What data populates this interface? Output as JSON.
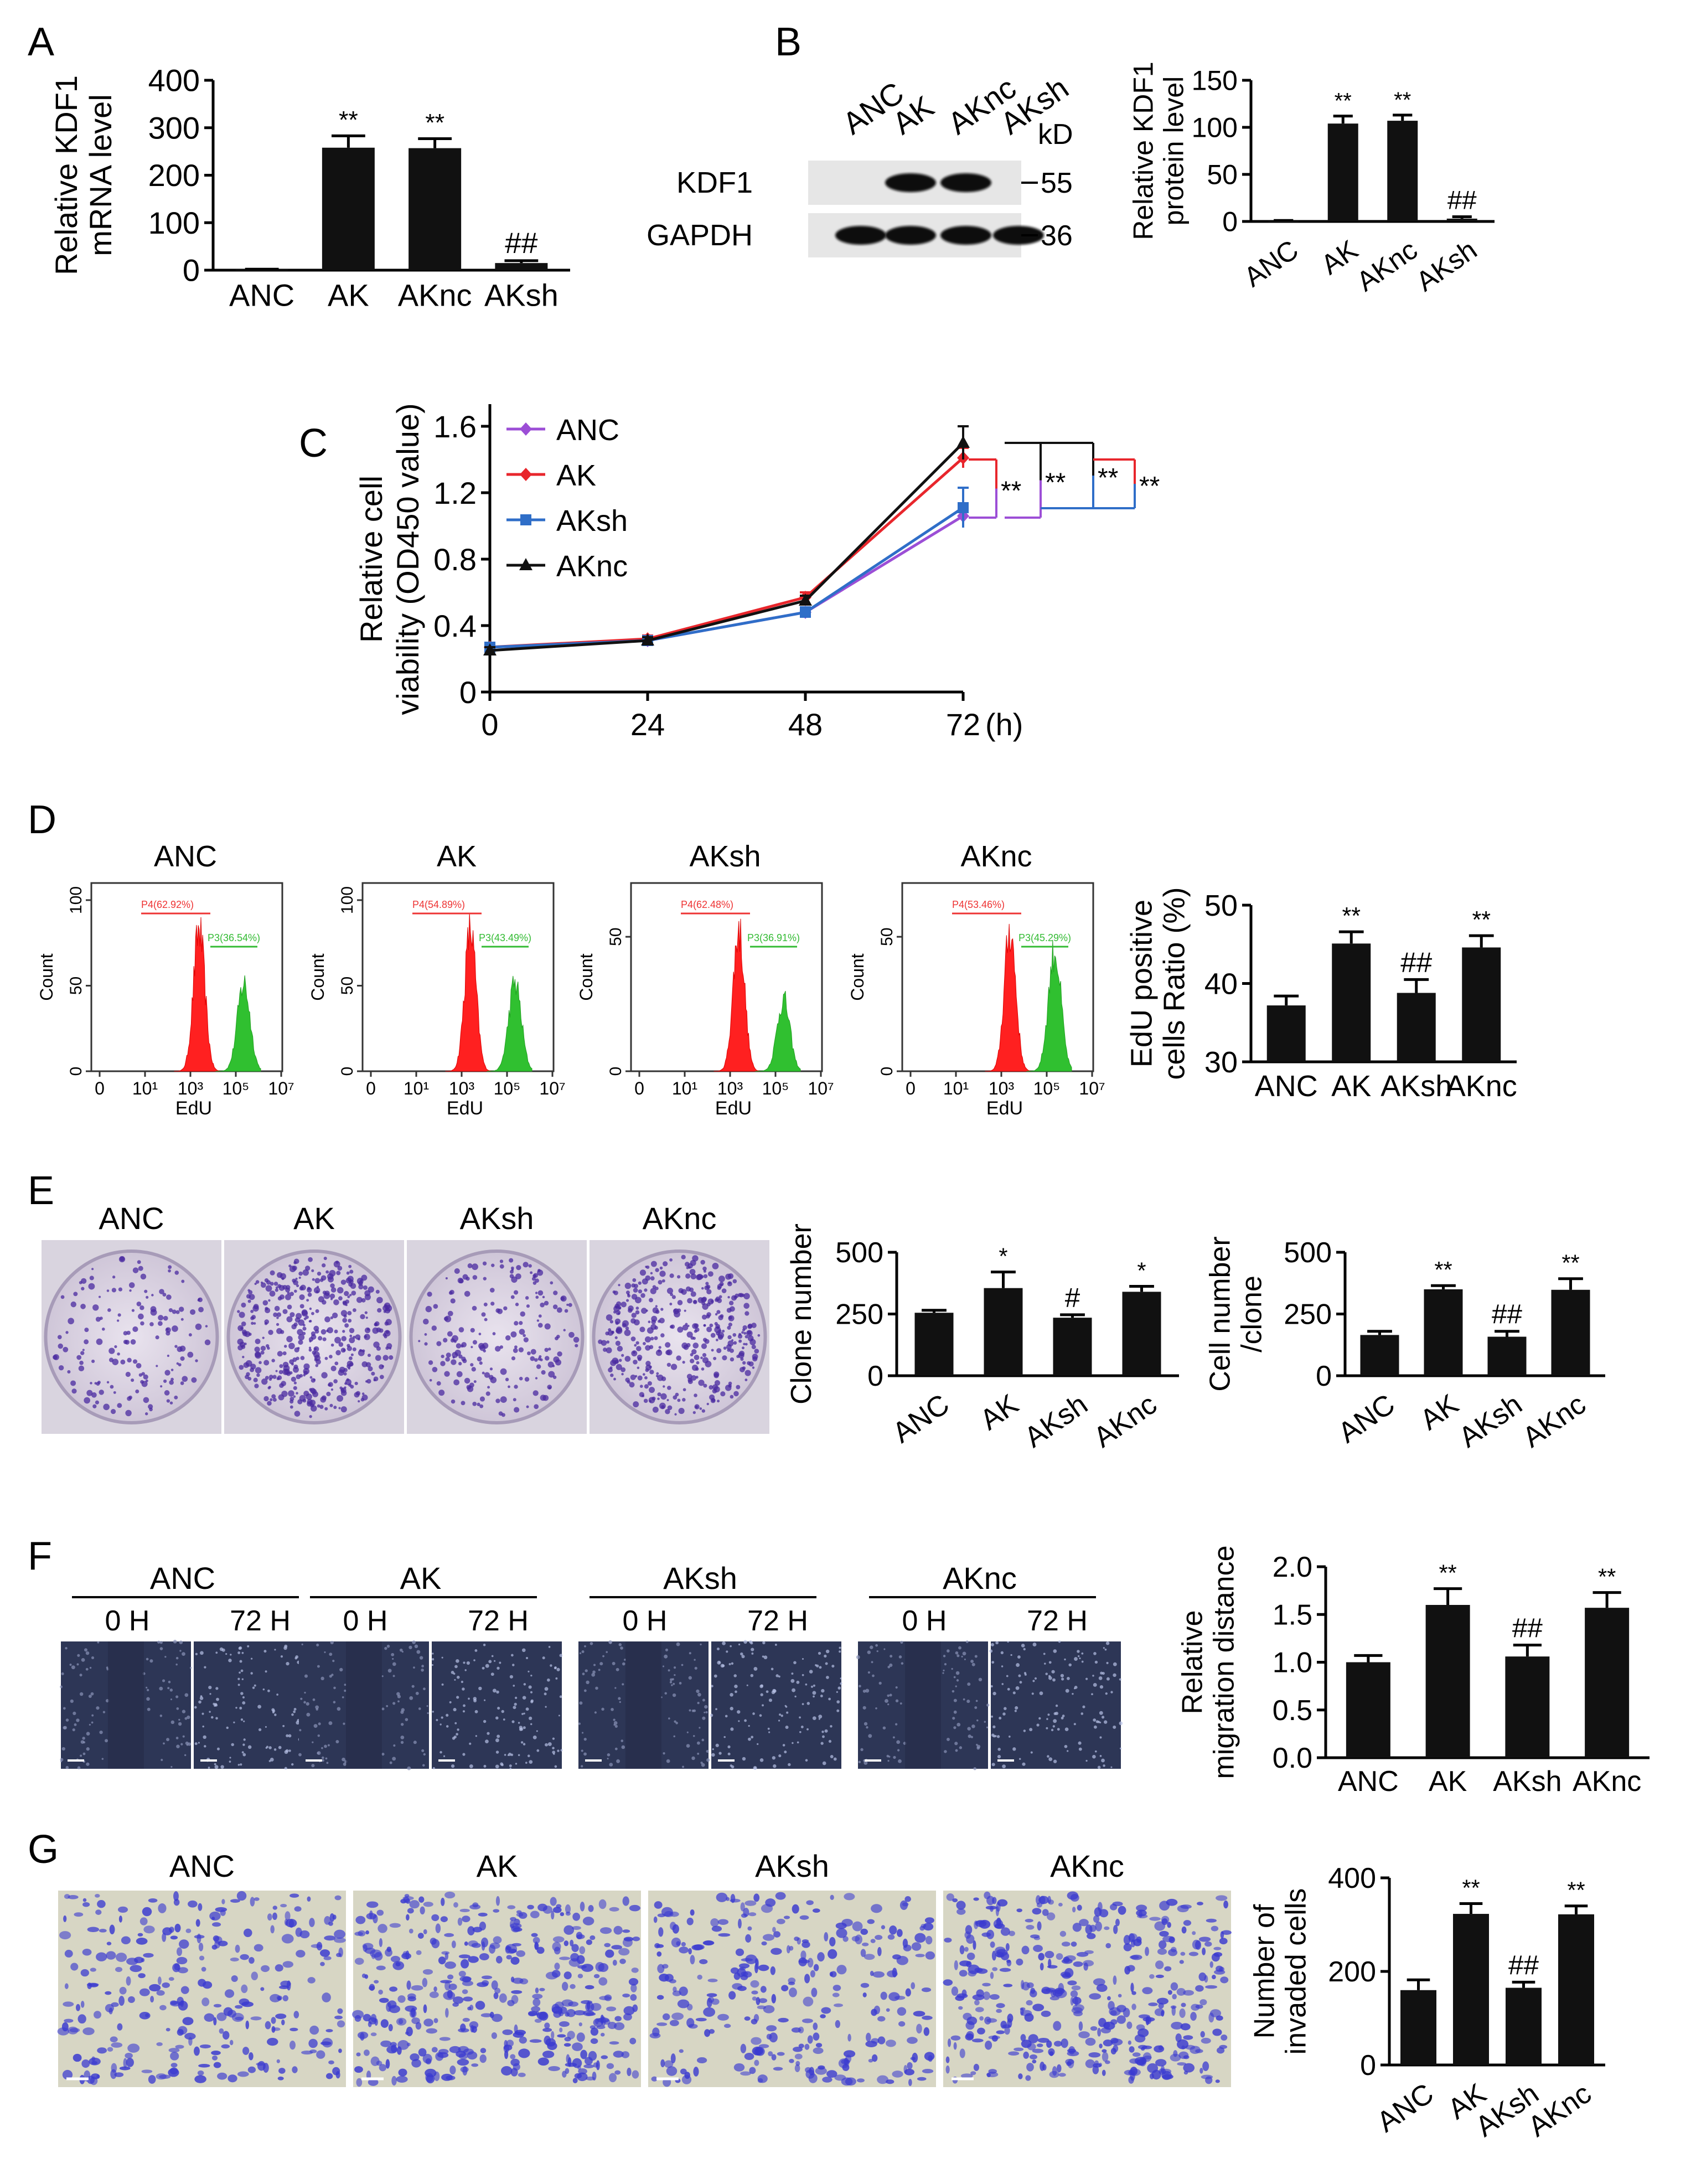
{
  "panels": {
    "A": {
      "label": "A"
    },
    "B": {
      "label": "B"
    },
    "C": {
      "label": "C"
    },
    "D": {
      "label": "D"
    },
    "E": {
      "label": "E"
    },
    "F": {
      "label": "F"
    },
    "G": {
      "label": "G"
    }
  },
  "blot": {
    "lanes": [
      "ANC",
      "AK",
      "AKnc",
      "AKsh"
    ],
    "kd_label": "kD",
    "rows": [
      {
        "name": "KDF1",
        "marker": "55",
        "intensity": [
          0.02,
          1,
          1,
          0.03
        ]
      },
      {
        "name": "GAPDH",
        "marker": "36",
        "intensity": [
          1,
          1,
          1,
          1
        ]
      }
    ]
  },
  "flow": {
    "panels": [
      {
        "title": "ANC",
        "gate1": "P4(62.92%)",
        "gate2": "P3(36.54%)",
        "yticks": [
          "0",
          "50",
          "100"
        ]
      },
      {
        "title": "AK",
        "gate1": "P4(54.89%)",
        "gate2": "P3(43.49%)",
        "yticks": [
          "0",
          "50",
          "100"
        ]
      },
      {
        "title": "AKsh",
        "gate1": "P4(62.48%)",
        "gate2": "P3(36.91%)",
        "yticks": [
          "0",
          "50"
        ]
      },
      {
        "title": "AKnc",
        "gate1": "P4(53.46%)",
        "gate2": "P3(45.29%)",
        "yticks": [
          "0",
          "50"
        ]
      }
    ],
    "xlabel": "EdU",
    "ylabel": "Count",
    "xticks": [
      "0",
      "10¹",
      "10³",
      "10⁵",
      "10⁷"
    ]
  },
  "clone_images": {
    "labels": [
      "ANC",
      "AK",
      "AKsh",
      "AKnc"
    ]
  },
  "wound_images": {
    "groups": [
      "ANC",
      "AK",
      "AKsh",
      "AKnc"
    ],
    "time_labels": [
      "0 H",
      "72 H"
    ]
  },
  "invasion_images": {
    "labels": [
      "ANC",
      "AK",
      "AKsh",
      "AKnc"
    ]
  },
  "chart_data": [
    {
      "id": "A",
      "type": "bar",
      "categories": [
        "ANC",
        "AK",
        "AKnc",
        "AKsh"
      ],
      "values": [
        1,
        258,
        257,
        15
      ],
      "errors": [
        1,
        25,
        20,
        5
      ],
      "annotations": [
        "",
        "**",
        "**",
        "##"
      ],
      "ylabel_lines": [
        "Relative KDF1",
        "mRNA level"
      ],
      "ylim": [
        0,
        400
      ],
      "yticks": [
        0,
        100,
        200,
        300,
        400
      ]
    },
    {
      "id": "B",
      "type": "bar",
      "categories": [
        "ANC",
        "AK",
        "AKnc",
        "AKsh"
      ],
      "values": [
        0.5,
        104,
        107,
        3
      ],
      "errors": [
        0.5,
        8,
        6,
        2
      ],
      "annotations": [
        "",
        "**",
        "**",
        "##"
      ],
      "ylabel_lines": [
        "Relative KDF1",
        "protein level"
      ],
      "ylim": [
        0,
        150
      ],
      "yticks": [
        0,
        50,
        100,
        150
      ]
    },
    {
      "id": "C",
      "type": "line",
      "x": [
        0,
        24,
        48,
        72
      ],
      "xticks": [
        0,
        24,
        48,
        72
      ],
      "xunit": "(h)",
      "ylabel_lines": [
        "Relative cell",
        "viability (OD450 value)"
      ],
      "ylim": [
        0,
        1.6
      ],
      "yticks": [
        0,
        0.4,
        0.8,
        1.2,
        1.6
      ],
      "series": [
        {
          "name": "ANC",
          "color": "#9c4ed6",
          "marker": "diamond",
          "values": [
            0.27,
            0.31,
            0.48,
            1.06
          ],
          "errors": [
            0.02,
            0.02,
            0.03,
            0.06
          ]
        },
        {
          "name": "AK",
          "color": "#e8262c",
          "marker": "diamond",
          "values": [
            0.27,
            0.32,
            0.57,
            1.41
          ],
          "errors": [
            0.02,
            0.02,
            0.03,
            0.06
          ]
        },
        {
          "name": "AKsh",
          "color": "#2f6ec8",
          "marker": "square",
          "values": [
            0.27,
            0.31,
            0.48,
            1.11
          ],
          "errors": [
            0.02,
            0.02,
            0.03,
            0.12
          ]
        },
        {
          "name": "AKnc",
          "color": "#111111",
          "marker": "triangle",
          "values": [
            0.25,
            0.31,
            0.55,
            1.5
          ],
          "errors": [
            0.02,
            0.02,
            0.03,
            0.1
          ]
        }
      ],
      "significance": [
        "**",
        "**",
        "**",
        "**"
      ]
    },
    {
      "id": "D",
      "type": "bar",
      "categories": [
        "ANC",
        "AK",
        "AKsh",
        "AKnc"
      ],
      "values": [
        37.2,
        45.1,
        38.8,
        44.6
      ],
      "errors": [
        1.2,
        1.5,
        1.7,
        1.5
      ],
      "annotations": [
        "",
        "**",
        "##",
        "**"
      ],
      "ylabel_lines": [
        "EdU positive",
        "cells Ratio (%)"
      ],
      "ylim": [
        30,
        50
      ],
      "yticks": [
        30,
        40,
        50
      ]
    },
    {
      "id": "E1",
      "type": "bar",
      "categories": [
        "ANC",
        "AK",
        "AKsh",
        "AKnc"
      ],
      "values": [
        255,
        355,
        235,
        340
      ],
      "errors": [
        10,
        65,
        12,
        22
      ],
      "annotations": [
        "",
        "*",
        "#",
        "*"
      ],
      "ylabel_lines": [
        "Clone number"
      ],
      "ylim": [
        0,
        500
      ],
      "yticks": [
        0,
        250,
        500
      ]
    },
    {
      "id": "E2",
      "type": "bar",
      "categories": [
        "ANC",
        "AK",
        "AKsh",
        "AKnc"
      ],
      "values": [
        165,
        350,
        158,
        348
      ],
      "errors": [
        15,
        15,
        22,
        45
      ],
      "annotations": [
        "",
        "**",
        "##",
        "**"
      ],
      "ylabel_lines": [
        "Cell number",
        "/clone"
      ],
      "ylim": [
        0,
        500
      ],
      "yticks": [
        0,
        250,
        500
      ]
    },
    {
      "id": "F",
      "type": "bar",
      "categories": [
        "ANC",
        "AK",
        "AKsh",
        "AKnc"
      ],
      "values": [
        1.0,
        1.6,
        1.06,
        1.57
      ],
      "errors": [
        0.07,
        0.17,
        0.12,
        0.16
      ],
      "annotations": [
        "",
        "**",
        "##",
        "**"
      ],
      "ylabel_lines": [
        "Relative",
        "migration distance"
      ],
      "ylim": [
        0,
        2.0
      ],
      "yticks": [
        "0.0",
        "0.5",
        "1.0",
        "1.5",
        "2.0"
      ]
    },
    {
      "id": "G",
      "type": "bar",
      "categories": [
        "ANC",
        "AK",
        "AKsh",
        "AKnc"
      ],
      "values": [
        160,
        323,
        165,
        322
      ],
      "errors": [
        22,
        22,
        12,
        18
      ],
      "annotations": [
        "",
        "**",
        "##",
        "**"
      ],
      "ylabel_lines": [
        "Number of",
        "invaded cells"
      ],
      "ylim": [
        0,
        400
      ],
      "yticks": [
        0,
        200,
        400
      ]
    }
  ]
}
